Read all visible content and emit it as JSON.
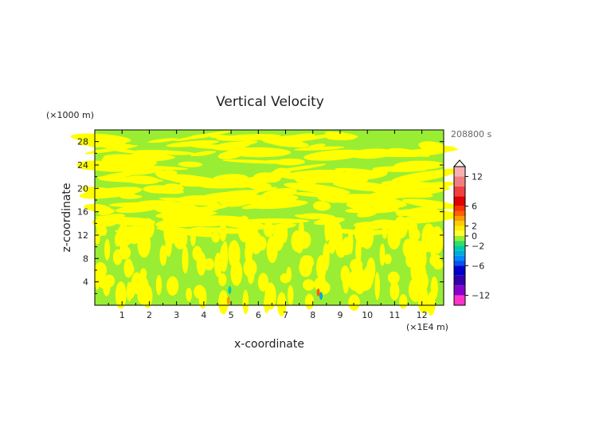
{
  "chart_data": {
    "type": "heatmap",
    "title": "Vertical Velocity",
    "xlabel": "x-coordinate",
    "ylabel": "z-coordinate",
    "x_unit": "(×1E4 m)",
    "y_unit": "(×1000 m)",
    "time_label": "208800 s",
    "xlim": [
      0,
      12.8
    ],
    "ylim": [
      0,
      30
    ],
    "x_ticks": [
      1,
      2,
      3,
      4,
      5,
      6,
      7,
      8,
      9,
      10,
      11,
      12
    ],
    "y_ticks": [
      4,
      8,
      12,
      16,
      20,
      24,
      28
    ],
    "colors": {
      "positive_small": "#ffff00",
      "near_zero": "#99ee33",
      "negative_small": "#33cc99",
      "axis": "#000000"
    },
    "colorbar": {
      "ticks": [
        {
          "value": 12,
          "label": "12"
        },
        {
          "value": 6,
          "label": "6"
        },
        {
          "value": 2,
          "label": "2"
        },
        {
          "value": 0,
          "label": "0"
        },
        {
          "value": -2,
          "label": "−2"
        },
        {
          "value": -6,
          "label": "−6"
        },
        {
          "value": -12,
          "label": "−12"
        }
      ],
      "bands": [
        {
          "from": 14,
          "to": 12,
          "color": "#f7b0b0"
        },
        {
          "from": 12,
          "to": 10,
          "color": "#f08080"
        },
        {
          "from": 10,
          "to": 8,
          "color": "#f04040"
        },
        {
          "from": 8,
          "to": 6,
          "color": "#e00000"
        },
        {
          "from": 6,
          "to": 5,
          "color": "#ff3000"
        },
        {
          "from": 5,
          "to": 4,
          "color": "#ff6000"
        },
        {
          "from": 4,
          "to": 3,
          "color": "#ff9900"
        },
        {
          "from": 3,
          "to": 2,
          "color": "#ffcc00"
        },
        {
          "from": 2,
          "to": 1,
          "color": "#ffee00"
        },
        {
          "from": 1,
          "to": 0,
          "color": "#ffff33"
        },
        {
          "from": 0,
          "to": -1,
          "color": "#99ee33"
        },
        {
          "from": -1,
          "to": -2,
          "color": "#33dd66"
        },
        {
          "from": -2,
          "to": -3,
          "color": "#00ccaa"
        },
        {
          "from": -3,
          "to": -4,
          "color": "#00aadd"
        },
        {
          "from": -4,
          "to": -5,
          "color": "#0088ff"
        },
        {
          "from": -5,
          "to": -6,
          "color": "#0055ee"
        },
        {
          "from": -6,
          "to": -8,
          "color": "#0000cc"
        },
        {
          "from": -8,
          "to": -10,
          "color": "#3300aa"
        },
        {
          "from": -10,
          "to": -12,
          "color": "#8800cc"
        },
        {
          "from": -12,
          "to": -14,
          "color": "#ff33cc"
        }
      ]
    }
  }
}
